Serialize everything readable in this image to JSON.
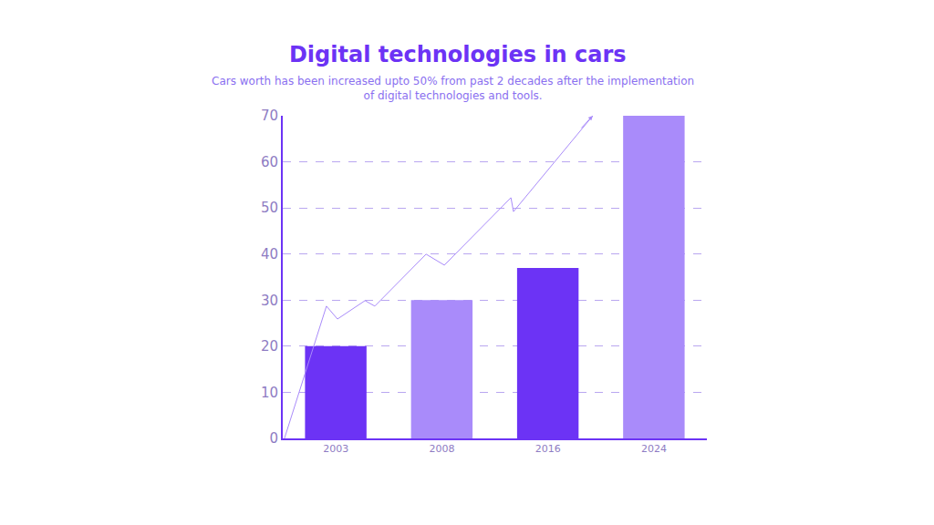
{
  "chart_data": {
    "type": "bar",
    "title": "Digital technologies in cars",
    "subtitle": [
      "Cars worth has been increased upto 50% from past 2 decades after the implementation",
      "of digital technologies and tools."
    ],
    "categories": [
      "2003",
      "2008",
      "2016",
      "2024"
    ],
    "values": [
      20,
      30,
      37,
      70
    ],
    "colors": [
      "#6c33f5",
      "#a98bfa",
      "#6c33f5",
      "#a98bfa"
    ],
    "ylim": [
      0,
      70
    ],
    "yticks": [
      0,
      10,
      20,
      30,
      40,
      50,
      60,
      70
    ],
    "grid": true
  }
}
